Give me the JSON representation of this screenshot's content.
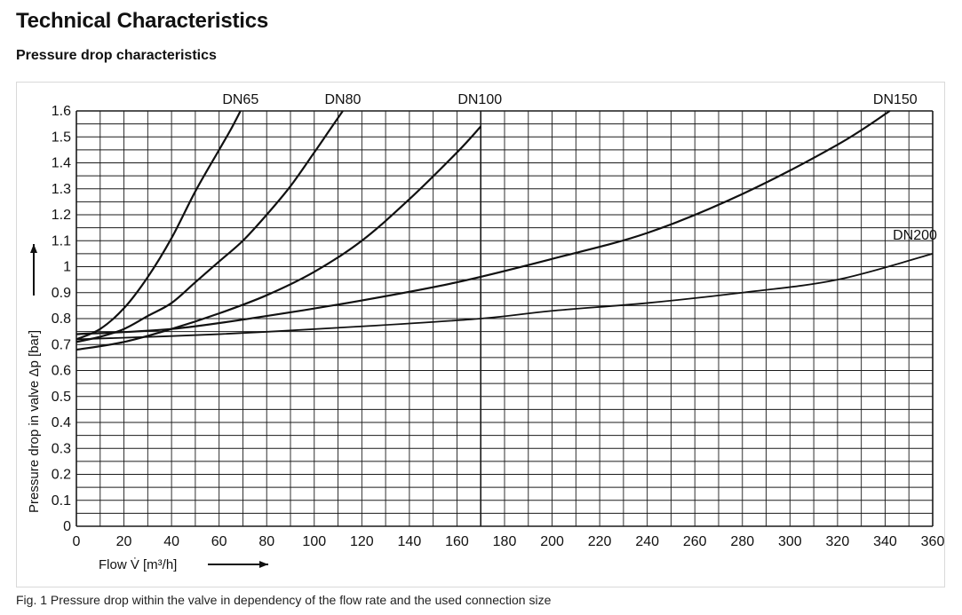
{
  "header": {
    "title": "Technical Characteristics",
    "subtitle": "Pressure drop characteristics"
  },
  "caption": "Fig. 1 Pressure drop within the valve in dependency of the flow rate and the used connection size",
  "chart_data": {
    "type": "line",
    "title": "",
    "xlabel": "Flow V̇ [m³/h]",
    "ylabel": "Pressure drop in valve Δp [bar]",
    "xlim": [
      0,
      360
    ],
    "ylim": [
      0,
      1.6
    ],
    "xticks": [
      0,
      20,
      40,
      60,
      80,
      100,
      120,
      140,
      160,
      180,
      200,
      220,
      240,
      260,
      280,
      300,
      320,
      340,
      360
    ],
    "yticks": [
      "0",
      "0.1",
      "0.2",
      "0.3",
      "0.4",
      "0.5",
      "0.6",
      "0.7",
      "0.8",
      "0.9",
      "1",
      "1.1",
      "1.2",
      "1.3",
      "1.4",
      "1.5",
      "1.6"
    ],
    "grid": true,
    "series": [
      {
        "name": "DN65",
        "x": [
          0,
          10,
          20,
          30,
          40,
          50,
          60,
          65,
          69
        ],
        "y": [
          0.72,
          0.76,
          0.84,
          0.96,
          1.11,
          1.29,
          1.45,
          1.53,
          1.6
        ]
      },
      {
        "name": "DN80",
        "x": [
          0,
          10,
          20,
          30,
          40,
          50,
          60,
          70,
          80,
          90,
          100,
          106,
          112
        ],
        "y": [
          0.71,
          0.73,
          0.76,
          0.81,
          0.86,
          0.94,
          1.02,
          1.1,
          1.2,
          1.31,
          1.44,
          1.52,
          1.6
        ]
      },
      {
        "name": "DN100",
        "x": [
          0,
          20,
          40,
          60,
          80,
          100,
          120,
          140,
          160,
          170
        ],
        "y": [
          0.68,
          0.71,
          0.76,
          0.82,
          0.89,
          0.98,
          1.1,
          1.26,
          1.44,
          1.54
        ]
      },
      {
        "name": "DN150",
        "x": [
          0,
          40,
          80,
          120,
          160,
          200,
          240,
          280,
          320,
          342
        ],
        "y": [
          0.74,
          0.76,
          0.81,
          0.87,
          0.94,
          1.03,
          1.13,
          1.28,
          1.47,
          1.6
        ]
      },
      {
        "name": "DN200",
        "x": [
          0,
          60,
          120,
          170,
          200,
          240,
          280,
          320,
          360
        ],
        "y": [
          0.72,
          0.74,
          0.77,
          0.8,
          0.83,
          0.86,
          0.9,
          0.95,
          1.05
        ]
      }
    ]
  }
}
